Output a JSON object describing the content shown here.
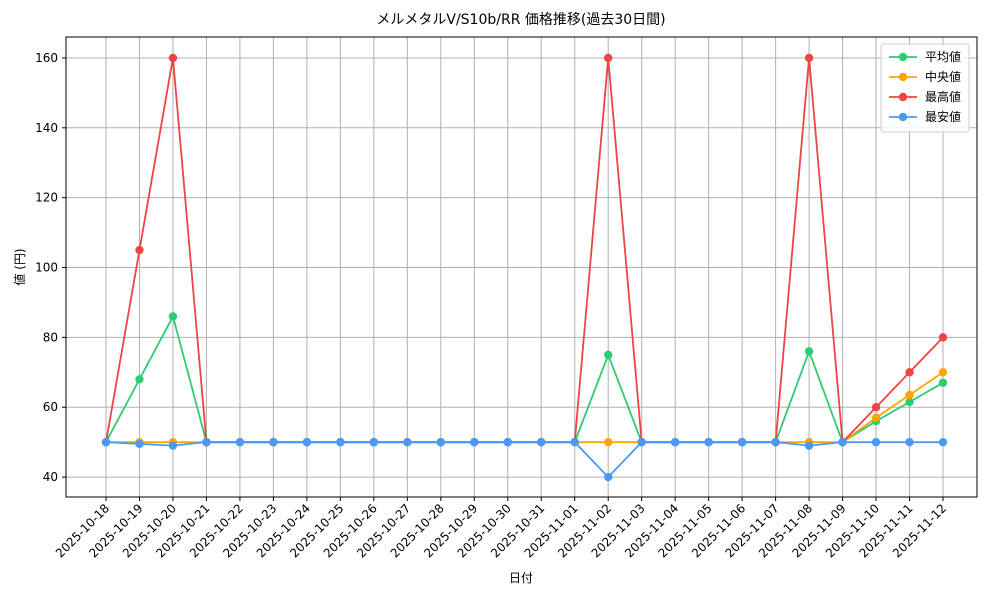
{
  "chart_data": {
    "type": "line",
    "title": "メルメタルV/S10b/RR 価格推移(過去30日間)",
    "x_label": "日付",
    "y_label": "値 (円)",
    "categories": [
      "2025-10-18",
      "2025-10-19",
      "2025-10-20",
      "2025-10-21",
      "2025-10-22",
      "2025-10-23",
      "2025-10-24",
      "2025-10-25",
      "2025-10-26",
      "2025-10-27",
      "2025-10-28",
      "2025-10-29",
      "2025-10-30",
      "2025-10-31",
      "2025-11-01",
      "2025-11-02",
      "2025-11-03",
      "2025-11-04",
      "2025-11-05",
      "2025-11-06",
      "2025-11-07",
      "2025-11-08",
      "2025-11-09",
      "2025-11-10",
      "2025-11-11",
      "2025-11-12"
    ],
    "series": [
      {
        "name": "平均値",
        "color": "#2ecc71",
        "values": [
          50,
          68,
          86,
          50,
          50,
          50,
          50,
          50,
          50,
          50,
          50,
          50,
          50,
          50,
          50,
          75,
          50,
          50,
          50,
          50,
          50,
          76,
          50,
          56,
          61.5,
          67
        ]
      },
      {
        "name": "中央値",
        "color": "#ffa500",
        "values": [
          50,
          50,
          50,
          50,
          50,
          50,
          50,
          50,
          50,
          50,
          50,
          50,
          50,
          50,
          50,
          50,
          50,
          50,
          50,
          50,
          50,
          50,
          50,
          57,
          63.5,
          70
        ]
      },
      {
        "name": "最高値",
        "color": "#ef4444",
        "values": [
          50,
          105,
          160,
          50,
          50,
          50,
          50,
          50,
          50,
          50,
          50,
          50,
          50,
          50,
          50,
          160,
          50,
          50,
          50,
          50,
          50,
          160,
          50,
          60,
          70,
          80
        ]
      },
      {
        "name": "最安値",
        "color": "#4a9af5",
        "values": [
          50,
          49.5,
          49,
          50,
          50,
          50,
          50,
          50,
          50,
          50,
          50,
          50,
          50,
          50,
          50,
          40,
          50,
          50,
          50,
          50,
          50,
          49,
          50,
          50,
          50,
          50
        ]
      }
    ],
    "ylim": [
      34.3,
      166
    ],
    "yticks": [
      40,
      60,
      80,
      100,
      120,
      140,
      160
    ],
    "grid": true,
    "legend": "upper right"
  }
}
